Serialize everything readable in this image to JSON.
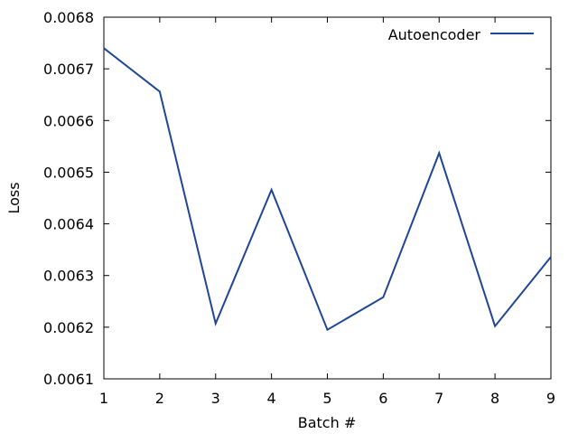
{
  "chart_data": {
    "type": "line",
    "title": "",
    "xlabel": "Batch #",
    "ylabel": "Loss",
    "xlim": [
      1,
      9
    ],
    "ylim": [
      0.0061,
      0.0068
    ],
    "x_ticks": [
      "1",
      "2",
      "3",
      "4",
      "5",
      "6",
      "7",
      "8",
      "9"
    ],
    "y_ticks": [
      "0.0061",
      "0.0062",
      "0.0063",
      "0.0064",
      "0.0065",
      "0.0066",
      "0.0067",
      "0.0068"
    ],
    "grid": false,
    "legend_position": "top-right",
    "x": [
      1,
      2,
      3,
      4,
      5,
      6,
      7,
      8,
      9
    ],
    "series": [
      {
        "name": "Autoencoder",
        "color": "#1f4597",
        "values": [
          0.00674,
          0.006656,
          0.006207,
          0.006466,
          0.006195,
          0.006258,
          0.006537,
          0.006202,
          0.006336
        ]
      }
    ]
  }
}
